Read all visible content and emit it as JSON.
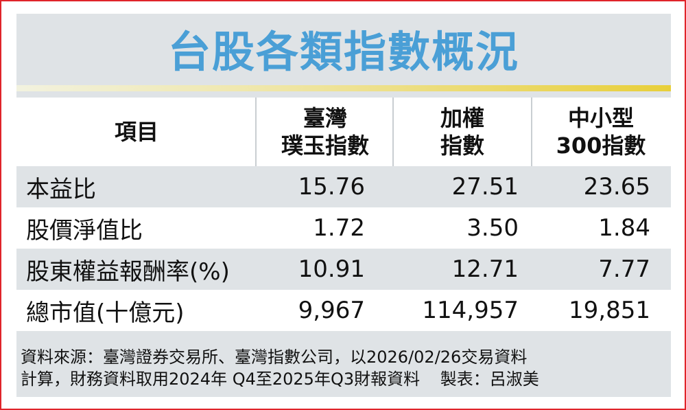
{
  "title": "台股各類指數概況",
  "header": {
    "item": "項目",
    "col1": [
      "臺灣",
      "璞玉指數"
    ],
    "col2": [
      "加權",
      "指數"
    ],
    "col3": [
      "中小型",
      "300指數"
    ]
  },
  "rows": [
    {
      "label": "本益比",
      "v1": "15.76",
      "v2": "27.51",
      "v3": "23.65"
    },
    {
      "label": "股價淨值比",
      "v1": "1.72",
      "v2": "3.50",
      "v3": "1.84"
    },
    {
      "label": "股東權益報酬率(%)",
      "v1": "10.91",
      "v2": "12.71",
      "v3": "7.77"
    },
    {
      "label": "總市值(十億元)",
      "v1": "9,967",
      "v2": "114,957",
      "v3": "19,851"
    }
  ],
  "footer": {
    "line1": "資料來源：臺灣證券交易所、臺灣指數公司，以2026/02/26交易資料",
    "line2": "計算，財務資料取用2024年 Q4至2025年Q3財報資料",
    "credit": "製表：呂淑美"
  },
  "colors": {
    "border": "#e0242a",
    "title": "#4a9fd6",
    "panel": "#dfe3e6",
    "rule": "#e8cf3a"
  }
}
